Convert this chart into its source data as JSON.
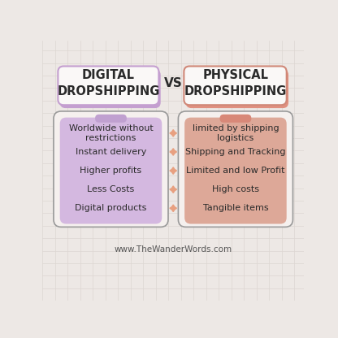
{
  "background_color": "#ede8e5",
  "grid_color": "#ddd6d2",
  "title_left": "DIGITAL\nDROPSHIPPING",
  "title_right": "PHYSICAL\nDROPSHIPPING",
  "vs_text": "VS",
  "left_items": [
    "Worldwide without\nrestrictions",
    "Instant delivery",
    "Higher profits",
    "Less Costs",
    "Digital products"
  ],
  "right_items": [
    "limited by shipping\nlogistics",
    "Shipping and Tracking",
    "Limited and low Profit",
    "High costs",
    "Tangible items"
  ],
  "left_panel_color": "#d4b8e0",
  "right_panel_color": "#dda898",
  "left_tab_color": "#c0a0d0",
  "right_tab_color": "#d88878",
  "left_accent_color": "#c9a8dc",
  "right_accent_color": "#e09080",
  "outer_box_fill": "#f5f0ee",
  "outer_box_border": "#999999",
  "title_box_fill": "#faf8f7",
  "title_left_border": "#c49fd0",
  "title_right_border": "#d08878",
  "title_left_accent": "#c49fd0",
  "title_right_accent": "#e09080",
  "diamond_color": "#e8a080",
  "text_color": "#2a2a2a",
  "website_text": "www.TheWanderWords.com",
  "font_size_title": 10.5,
  "font_size_items": 8.0,
  "font_size_vs": 11,
  "font_size_website": 7.5
}
